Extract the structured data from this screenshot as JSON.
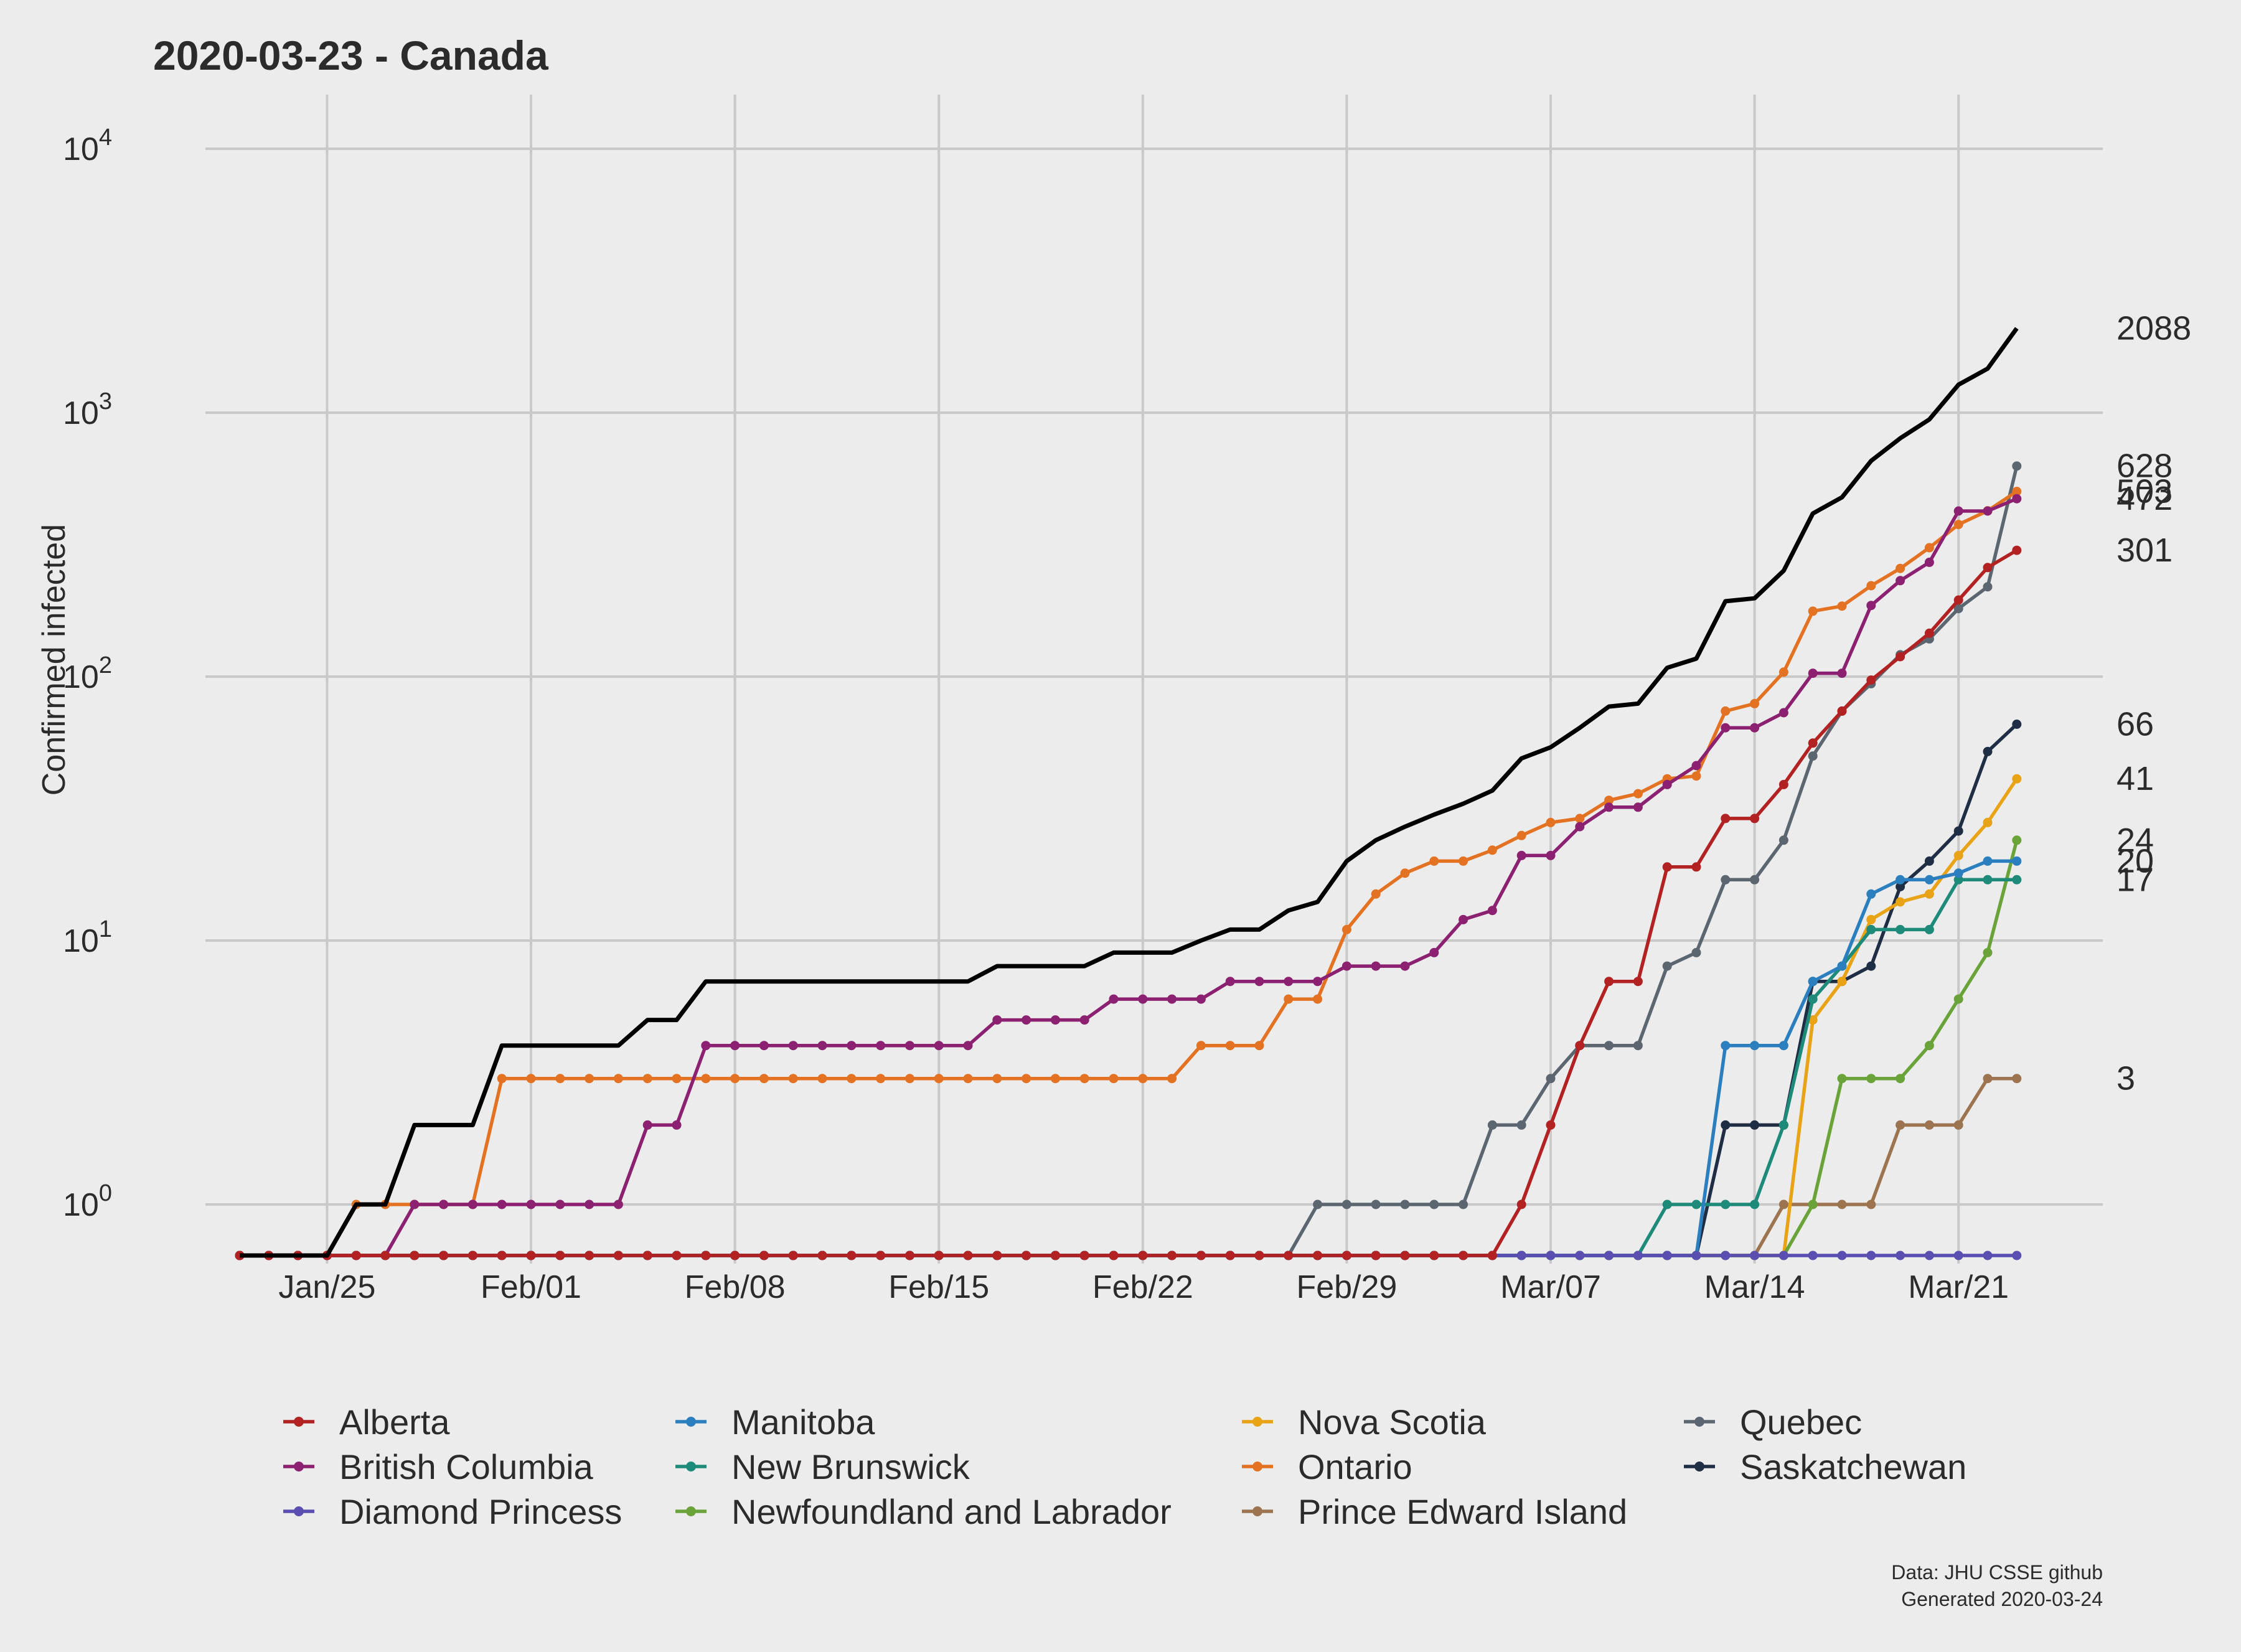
{
  "chart_data": {
    "type": "line",
    "title": "2020-03-23 - Canada",
    "ylabel": "Confirmed infected",
    "xlabel": "",
    "yscale": "log",
    "ylim": [
      0.55,
      15000
    ],
    "y_ticks": [
      {
        "value": 1,
        "label": "10",
        "exp": "0"
      },
      {
        "value": 10,
        "label": "10",
        "exp": "1"
      },
      {
        "value": 100,
        "label": "10",
        "exp": "2"
      },
      {
        "value": 1000,
        "label": "10",
        "exp": "3"
      },
      {
        "value": 10000,
        "label": "10",
        "exp": "4"
      }
    ],
    "x_ticks": [
      {
        "day": 3,
        "label": "Jan/25"
      },
      {
        "day": 10,
        "label": "Feb/01"
      },
      {
        "day": 17,
        "label": "Feb/08"
      },
      {
        "day": 24,
        "label": "Feb/15"
      },
      {
        "day": 31,
        "label": "Feb/22"
      },
      {
        "day": 38,
        "label": "Feb/29"
      },
      {
        "day": 45,
        "label": "Mar/07"
      },
      {
        "day": 52,
        "label": "Mar/14"
      },
      {
        "day": 59,
        "label": "Mar/21"
      }
    ],
    "x_start_date": "2020-01-22",
    "grid": true,
    "legend_position": "bottom",
    "total": {
      "name": "Canada",
      "color": "#000000",
      "values": [
        0,
        0,
        0,
        0,
        1,
        1,
        2,
        2,
        2,
        4,
        4,
        4,
        4,
        4,
        5,
        5,
        7,
        7,
        7,
        7,
        7,
        7,
        7,
        7,
        7,
        7,
        8,
        8,
        8,
        8,
        9,
        9,
        9,
        10,
        11,
        11,
        13,
        14,
        20,
        24,
        27,
        30,
        33,
        37,
        49,
        54,
        64,
        77,
        79,
        108,
        117,
        193,
        198,
        252,
        415,
        478,
        657,
        800,
        943,
        1277,
        1469,
        2088
      ]
    },
    "series": [
      {
        "name": "Alberta",
        "color": "#b22222",
        "values": [
          0,
          0,
          0,
          0,
          0,
          0,
          0,
          0,
          0,
          0,
          0,
          0,
          0,
          0,
          0,
          0,
          0,
          0,
          0,
          0,
          0,
          0,
          0,
          0,
          0,
          0,
          0,
          0,
          0,
          0,
          0,
          0,
          0,
          0,
          0,
          0,
          0,
          0,
          0,
          0,
          0,
          0,
          0,
          0,
          1,
          2,
          4,
          7,
          7,
          19,
          19,
          29,
          29,
          39,
          56,
          74,
          97,
          119,
          146,
          195,
          259,
          301
        ]
      },
      {
        "name": "British Columbia",
        "color": "#8b2170",
        "values": [
          0,
          0,
          0,
          0,
          0,
          0,
          1,
          1,
          1,
          1,
          1,
          1,
          1,
          1,
          2,
          2,
          4,
          4,
          4,
          4,
          4,
          4,
          4,
          4,
          4,
          4,
          5,
          5,
          5,
          5,
          6,
          6,
          6,
          6,
          7,
          7,
          7,
          7,
          8,
          8,
          8,
          9,
          12,
          13,
          21,
          21,
          27,
          32,
          32,
          39,
          46,
          64,
          64,
          73,
          103,
          103,
          186,
          231,
          271,
          424,
          424,
          472
        ]
      },
      {
        "name": "Diamond Princess",
        "color": "#5a4fb0",
        "values": [
          0,
          0,
          0,
          0,
          0,
          0,
          0,
          0,
          0,
          0,
          0,
          0,
          0,
          0,
          0,
          0,
          0,
          0,
          0,
          0,
          0,
          0,
          0,
          0,
          0,
          0,
          0,
          0,
          0,
          0,
          0,
          0,
          0,
          0,
          0,
          0,
          0,
          0,
          0,
          0,
          0,
          0,
          0,
          0,
          0,
          0,
          0,
          0,
          0,
          0,
          0,
          0,
          0,
          0,
          0,
          0,
          0,
          0,
          0,
          0,
          0,
          0
        ]
      },
      {
        "name": "Manitoba",
        "color": "#2b7fbf",
        "values": [
          0,
          0,
          0,
          0,
          0,
          0,
          0,
          0,
          0,
          0,
          0,
          0,
          0,
          0,
          0,
          0,
          0,
          0,
          0,
          0,
          0,
          0,
          0,
          0,
          0,
          0,
          0,
          0,
          0,
          0,
          0,
          0,
          0,
          0,
          0,
          0,
          0,
          0,
          0,
          0,
          0,
          0,
          0,
          0,
          0,
          0,
          0,
          0,
          0,
          0,
          0,
          4,
          4,
          4,
          7,
          8,
          15,
          17,
          17,
          18,
          20,
          20
        ]
      },
      {
        "name": "New Brunswick",
        "color": "#1e8a7a",
        "values": [
          0,
          0,
          0,
          0,
          0,
          0,
          0,
          0,
          0,
          0,
          0,
          0,
          0,
          0,
          0,
          0,
          0,
          0,
          0,
          0,
          0,
          0,
          0,
          0,
          0,
          0,
          0,
          0,
          0,
          0,
          0,
          0,
          0,
          0,
          0,
          0,
          0,
          0,
          0,
          0,
          0,
          0,
          0,
          0,
          0,
          0,
          0,
          0,
          0,
          1,
          1,
          1,
          1,
          2,
          6,
          8,
          11,
          11,
          11,
          17,
          17,
          17
        ]
      },
      {
        "name": "Newfoundland and Labrador",
        "color": "#6aa33a",
        "values": [
          0,
          0,
          0,
          0,
          0,
          0,
          0,
          0,
          0,
          0,
          0,
          0,
          0,
          0,
          0,
          0,
          0,
          0,
          0,
          0,
          0,
          0,
          0,
          0,
          0,
          0,
          0,
          0,
          0,
          0,
          0,
          0,
          0,
          0,
          0,
          0,
          0,
          0,
          0,
          0,
          0,
          0,
          0,
          0,
          0,
          0,
          0,
          0,
          0,
          0,
          0,
          0,
          0,
          0,
          1,
          3,
          3,
          3,
          4,
          6,
          9,
          24
        ]
      },
      {
        "name": "Nova Scotia",
        "color": "#e8a317",
        "values": [
          0,
          0,
          0,
          0,
          0,
          0,
          0,
          0,
          0,
          0,
          0,
          0,
          0,
          0,
          0,
          0,
          0,
          0,
          0,
          0,
          0,
          0,
          0,
          0,
          0,
          0,
          0,
          0,
          0,
          0,
          0,
          0,
          0,
          0,
          0,
          0,
          0,
          0,
          0,
          0,
          0,
          0,
          0,
          0,
          0,
          0,
          0,
          0,
          0,
          0,
          0,
          0,
          0,
          0,
          5,
          7,
          12,
          14,
          15,
          21,
          28,
          41
        ]
      },
      {
        "name": "Ontario",
        "color": "#e37222",
        "values": [
          0,
          0,
          0,
          0,
          1,
          1,
          1,
          1,
          1,
          3,
          3,
          3,
          3,
          3,
          3,
          3,
          3,
          3,
          3,
          3,
          3,
          3,
          3,
          3,
          3,
          3,
          3,
          3,
          3,
          3,
          3,
          3,
          3,
          4,
          4,
          4,
          6,
          6,
          11,
          15,
          18,
          20,
          20,
          22,
          25,
          28,
          29,
          34,
          36,
          41,
          42,
          74,
          79,
          104,
          177,
          185,
          221,
          257,
          308,
          377,
          425,
          503
        ]
      },
      {
        "name": "Prince Edward Island",
        "color": "#9c7450",
        "values": [
          0,
          0,
          0,
          0,
          0,
          0,
          0,
          0,
          0,
          0,
          0,
          0,
          0,
          0,
          0,
          0,
          0,
          0,
          0,
          0,
          0,
          0,
          0,
          0,
          0,
          0,
          0,
          0,
          0,
          0,
          0,
          0,
          0,
          0,
          0,
          0,
          0,
          0,
          0,
          0,
          0,
          0,
          0,
          0,
          0,
          0,
          0,
          0,
          0,
          0,
          0,
          0,
          0,
          1,
          1,
          1,
          1,
          2,
          2,
          2,
          3,
          3
        ]
      },
      {
        "name": "Quebec",
        "color": "#5b6670",
        "values": [
          0,
          0,
          0,
          0,
          0,
          0,
          0,
          0,
          0,
          0,
          0,
          0,
          0,
          0,
          0,
          0,
          0,
          0,
          0,
          0,
          0,
          0,
          0,
          0,
          0,
          0,
          0,
          0,
          0,
          0,
          0,
          0,
          0,
          0,
          0,
          0,
          0,
          1,
          1,
          1,
          1,
          1,
          1,
          2,
          2,
          3,
          4,
          4,
          4,
          8,
          9,
          17,
          17,
          24,
          50,
          74,
          94,
          121,
          139,
          181,
          219,
          628
        ]
      },
      {
        "name": "Saskatchewan",
        "color": "#1f2d45",
        "values": [
          0,
          0,
          0,
          0,
          0,
          0,
          0,
          0,
          0,
          0,
          0,
          0,
          0,
          0,
          0,
          0,
          0,
          0,
          0,
          0,
          0,
          0,
          0,
          0,
          0,
          0,
          0,
          0,
          0,
          0,
          0,
          0,
          0,
          0,
          0,
          0,
          0,
          0,
          0,
          0,
          0,
          0,
          0,
          0,
          0,
          0,
          0,
          0,
          0,
          0,
          0,
          2,
          2,
          2,
          7,
          7,
          8,
          16,
          20,
          26,
          52,
          66
        ]
      }
    ],
    "end_labels": [
      {
        "text": "2088",
        "value": 2088
      },
      {
        "text": "628",
        "value": 628
      },
      {
        "text": "503",
        "value": 503
      },
      {
        "text": "472",
        "value": 472
      },
      {
        "text": "301",
        "value": 301
      },
      {
        "text": "66",
        "value": 66
      },
      {
        "text": "41",
        "value": 41
      },
      {
        "text": "24",
        "value": 24
      },
      {
        "text": "20",
        "value": 20
      },
      {
        "text": "17",
        "value": 17
      },
      {
        "text": "3",
        "value": 3
      }
    ],
    "caption": [
      "Data: JHU CSSE github",
      "Generated 2020-03-24"
    ]
  }
}
